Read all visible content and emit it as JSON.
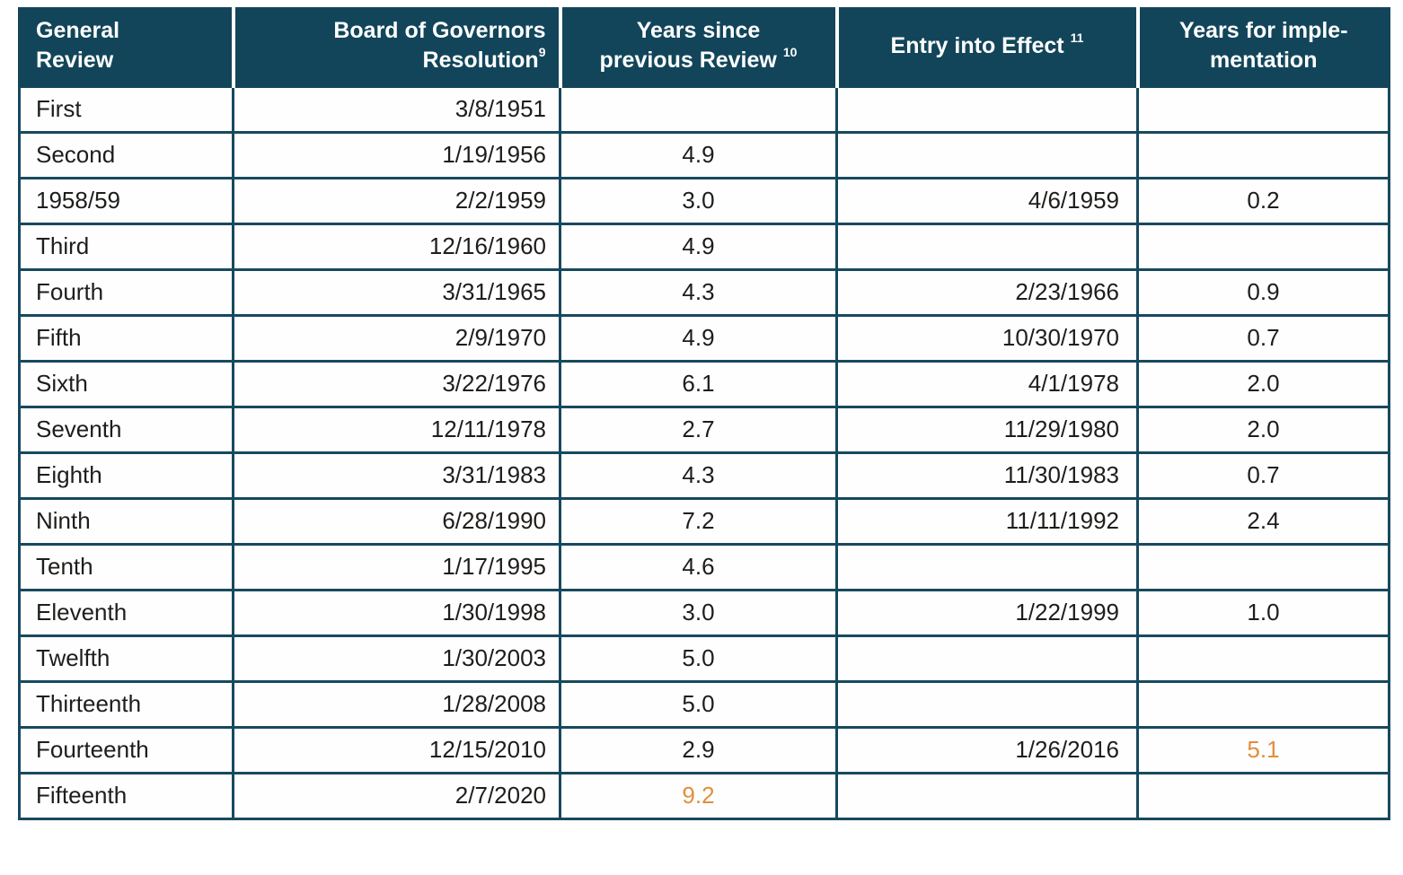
{
  "colors": {
    "header_background": "#12455a",
    "border": "#17495e",
    "header_text": "#ffffff",
    "body_text": "#1d1d1b",
    "accent_orange": "#e28e3e",
    "cell_background": "#fefefe"
  },
  "table": {
    "column_keys": [
      "review",
      "resolution",
      "years_since_previous_review",
      "entry_into_effect",
      "years_for_implementation"
    ],
    "columns": [
      {
        "label": "General Review",
        "lines": [
          "General",
          "Review"
        ],
        "superscript": ""
      },
      {
        "label": "Board of Governors Resolution",
        "lines": [
          "Board of Governors",
          "Resolution"
        ],
        "superscript": "9"
      },
      {
        "label": "Years since previous Review",
        "lines": [
          "Years since",
          "previous Review"
        ],
        "superscript": "10"
      },
      {
        "label": "Entry into Effect",
        "lines": [
          "Entry into Effect"
        ],
        "superscript": "11"
      },
      {
        "label": "Years for implementation",
        "lines": [
          "Years for imple-",
          "mentation"
        ],
        "superscript": ""
      }
    ],
    "rows": [
      {
        "cells": [
          {
            "text": "First"
          },
          {
            "text": "3/8/1951"
          },
          {
            "text": ""
          },
          {
            "text": ""
          },
          {
            "text": ""
          }
        ]
      },
      {
        "cells": [
          {
            "text": "Second"
          },
          {
            "text": "1/19/1956"
          },
          {
            "text": "4.9"
          },
          {
            "text": ""
          },
          {
            "text": ""
          }
        ]
      },
      {
        "cells": [
          {
            "text": "1958/59"
          },
          {
            "text": "2/2/1959"
          },
          {
            "text": "3.0"
          },
          {
            "text": "4/6/1959"
          },
          {
            "text": "0.2"
          }
        ]
      },
      {
        "cells": [
          {
            "text": "Third"
          },
          {
            "text": "12/16/1960"
          },
          {
            "text": "4.9"
          },
          {
            "text": ""
          },
          {
            "text": ""
          }
        ]
      },
      {
        "cells": [
          {
            "text": "Fourth"
          },
          {
            "text": "3/31/1965"
          },
          {
            "text": "4.3"
          },
          {
            "text": "2/23/1966"
          },
          {
            "text": "0.9"
          }
        ]
      },
      {
        "cells": [
          {
            "text": "Fifth"
          },
          {
            "text": "2/9/1970"
          },
          {
            "text": "4.9"
          },
          {
            "text": "10/30/1970"
          },
          {
            "text": "0.7"
          }
        ]
      },
      {
        "cells": [
          {
            "text": "Sixth"
          },
          {
            "text": "3/22/1976"
          },
          {
            "text": "6.1"
          },
          {
            "text": "4/1/1978"
          },
          {
            "text": "2.0"
          }
        ]
      },
      {
        "cells": [
          {
            "text": "Seventh"
          },
          {
            "text": "12/11/1978"
          },
          {
            "text": "2.7"
          },
          {
            "text": "11/29/1980"
          },
          {
            "text": "2.0"
          }
        ]
      },
      {
        "cells": [
          {
            "text": "Eighth"
          },
          {
            "text": "3/31/1983"
          },
          {
            "text": "4.3"
          },
          {
            "text": "11/30/1983"
          },
          {
            "text": "0.7"
          }
        ]
      },
      {
        "cells": [
          {
            "text": "Ninth"
          },
          {
            "text": "6/28/1990"
          },
          {
            "text": "7.2"
          },
          {
            "text": "11/11/1992"
          },
          {
            "text": "2.4"
          }
        ]
      },
      {
        "cells": [
          {
            "text": "Tenth"
          },
          {
            "text": "1/17/1995"
          },
          {
            "text": "4.6"
          },
          {
            "text": ""
          },
          {
            "text": ""
          }
        ]
      },
      {
        "cells": [
          {
            "text": "Eleventh"
          },
          {
            "text": "1/30/1998"
          },
          {
            "text": "3.0"
          },
          {
            "text": "1/22/1999"
          },
          {
            "text": "1.0"
          }
        ]
      },
      {
        "cells": [
          {
            "text": "Twelfth"
          },
          {
            "text": "1/30/2003"
          },
          {
            "text": "5.0"
          },
          {
            "text": ""
          },
          {
            "text": ""
          }
        ]
      },
      {
        "cells": [
          {
            "text": "Thirteenth"
          },
          {
            "text": "1/28/2008"
          },
          {
            "text": "5.0"
          },
          {
            "text": ""
          },
          {
            "text": ""
          }
        ]
      },
      {
        "cells": [
          {
            "text": "Fourteenth"
          },
          {
            "text": "12/15/2010"
          },
          {
            "text": "2.9"
          },
          {
            "text": "1/26/2016"
          },
          {
            "text": "5.1",
            "highlight": true
          }
        ]
      },
      {
        "cells": [
          {
            "text": "Fifteenth"
          },
          {
            "text": "2/7/2020"
          },
          {
            "text": "9.2",
            "highlight": true
          },
          {
            "text": ""
          },
          {
            "text": ""
          }
        ]
      }
    ]
  }
}
